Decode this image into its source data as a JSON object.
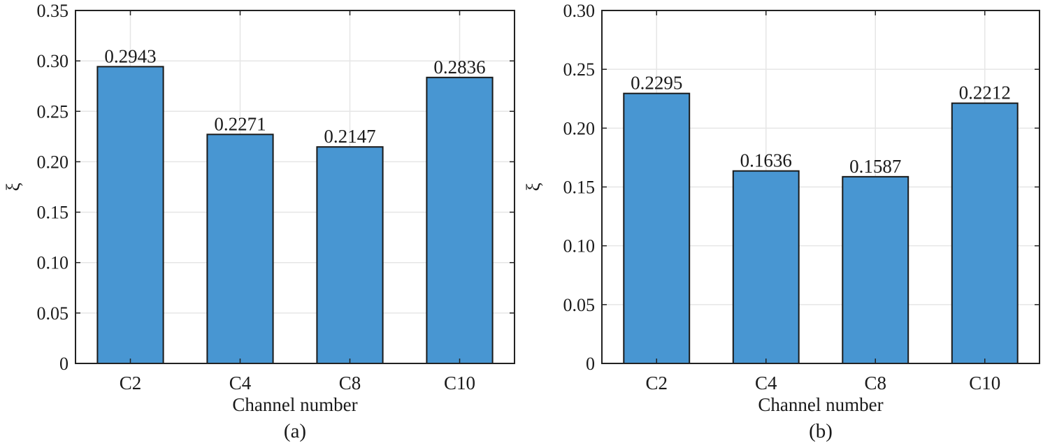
{
  "figure": {
    "bar_color": "#4896d2",
    "edge_color": "#1a1a1a",
    "grid_color": "#e6e6e6"
  },
  "chart_data": [
    {
      "type": "bar",
      "panel_label": "(a)",
      "categories": [
        "C2",
        "C4",
        "C8",
        "C10"
      ],
      "values": [
        0.2943,
        0.2271,
        0.2147,
        0.2836
      ],
      "value_labels": [
        "0.2943",
        "0.2271",
        "0.2147",
        "0.2836"
      ],
      "xlabel": "Channel number",
      "ylabel": "ξ",
      "ylim": [
        0,
        0.35
      ],
      "yticks": [
        0,
        0.05,
        0.1,
        0.15,
        0.2,
        0.25,
        0.3,
        0.35
      ],
      "ytick_labels": [
        "0",
        "0.05",
        "0.10",
        "0.15",
        "0.20",
        "0.25",
        "0.30",
        "0.35"
      ],
      "grid": true
    },
    {
      "type": "bar",
      "panel_label": "(b)",
      "categories": [
        "C2",
        "C4",
        "C8",
        "C10"
      ],
      "values": [
        0.2295,
        0.1636,
        0.1587,
        0.2212
      ],
      "value_labels": [
        "0.2295",
        "0.1636",
        "0.1587",
        "0.2212"
      ],
      "xlabel": "Channel number",
      "ylabel": "ξ",
      "ylim": [
        0,
        0.3
      ],
      "yticks": [
        0,
        0.05,
        0.1,
        0.15,
        0.2,
        0.25,
        0.3
      ],
      "ytick_labels": [
        "0",
        "0.05",
        "0.10",
        "0.15",
        "0.20",
        "0.25",
        "0.30"
      ],
      "grid": true
    }
  ]
}
